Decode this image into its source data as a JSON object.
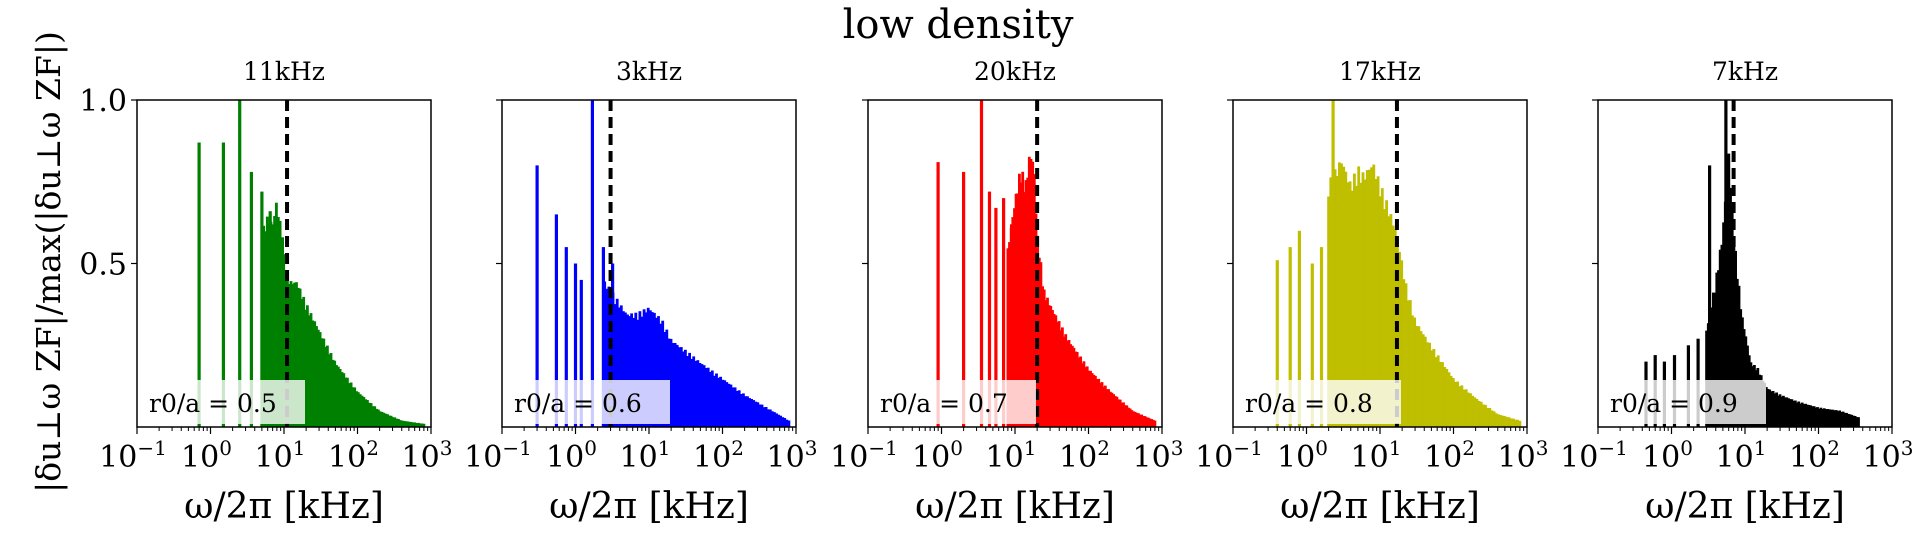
{
  "chart_data": {
    "type": "bar",
    "title": "low density",
    "ylabel": "|δu⊥ω ZF|/max(|δu⊥ω ZF|)",
    "ylim": [
      0,
      1.0
    ],
    "yticks": [
      0.5,
      1.0
    ],
    "ytick_labels": [
      "0.5",
      "1.0"
    ],
    "xscale": "log",
    "xlim": [
      0.1,
      1000
    ],
    "xtick_labels": [
      {
        "base": "10",
        "exp": "−1"
      },
      {
        "base": "10",
        "exp": "0"
      },
      {
        "base": "10",
        "exp": "1"
      },
      {
        "base": "10",
        "exp": "2"
      },
      {
        "base": "10",
        "exp": "3"
      }
    ],
    "xlabel": "ω/2π [kHz]",
    "panels": [
      {
        "title": "11kHz",
        "color": "#008000",
        "annotation": "r0/a = 0.5",
        "vline": 11,
        "spikes": [
          [
            0.7,
            0.87
          ],
          [
            1.5,
            0.87
          ],
          [
            2.5,
            1.0
          ],
          [
            3.6,
            0.78
          ],
          [
            5,
            0.72
          ],
          [
            6.5,
            0.66
          ],
          [
            8,
            0.62
          ],
          [
            9.5,
            0.58
          ]
        ],
        "envelope": [
          [
            5,
            0.6
          ],
          [
            6,
            0.65
          ],
          [
            7,
            0.63
          ],
          [
            8,
            0.7
          ],
          [
            9,
            0.62
          ],
          [
            10,
            0.52
          ],
          [
            12,
            0.45
          ],
          [
            15,
            0.45
          ],
          [
            20,
            0.38
          ],
          [
            30,
            0.3
          ],
          [
            50,
            0.2
          ],
          [
            100,
            0.11
          ],
          [
            200,
            0.05
          ],
          [
            400,
            0.02
          ],
          [
            800,
            0.01
          ]
        ]
      },
      {
        "title": "3kHz",
        "color": "#0000ff",
        "annotation": "r0/a = 0.6",
        "vline": 3,
        "spikes": [
          [
            0.3,
            0.8
          ],
          [
            0.55,
            0.65
          ],
          [
            0.75,
            0.55
          ],
          [
            1.0,
            0.5
          ],
          [
            1.2,
            0.45
          ],
          [
            1.7,
            1.0
          ],
          [
            2.4,
            0.55
          ],
          [
            3.2,
            0.5
          ]
        ],
        "envelope": [
          [
            2.5,
            0.45
          ],
          [
            3.5,
            0.4
          ],
          [
            5,
            0.35
          ],
          [
            7,
            0.35
          ],
          [
            10,
            0.37
          ],
          [
            15,
            0.33
          ],
          [
            20,
            0.27
          ],
          [
            30,
            0.24
          ],
          [
            50,
            0.2
          ],
          [
            100,
            0.15
          ],
          [
            200,
            0.1
          ],
          [
            400,
            0.06
          ],
          [
            800,
            0.02
          ]
        ]
      },
      {
        "title": "20kHz",
        "color": "#ff0000",
        "annotation": "r0/a = 0.7",
        "vline": 20,
        "spikes": [
          [
            0.9,
            0.81
          ],
          [
            2.0,
            0.78
          ],
          [
            3.5,
            1.0
          ],
          [
            4.5,
            0.72
          ],
          [
            5.5,
            0.67
          ],
          [
            7,
            0.7
          ],
          [
            9,
            0.62
          ],
          [
            11,
            0.6
          ]
        ],
        "envelope": [
          [
            8,
            0.55
          ],
          [
            10,
            0.7
          ],
          [
            12,
            0.8
          ],
          [
            14,
            0.75
          ],
          [
            16,
            0.85
          ],
          [
            18,
            0.82
          ],
          [
            20,
            0.6
          ],
          [
            25,
            0.42
          ],
          [
            30,
            0.38
          ],
          [
            50,
            0.28
          ],
          [
            100,
            0.18
          ],
          [
            200,
            0.11
          ],
          [
            400,
            0.05
          ],
          [
            800,
            0.02
          ]
        ]
      },
      {
        "title": "17kHz",
        "color": "#bfbf00",
        "annotation": "r0/a = 0.8",
        "vline": 17,
        "spikes": [
          [
            0.4,
            0.51
          ],
          [
            0.6,
            0.55
          ],
          [
            0.8,
            0.6
          ],
          [
            1.2,
            0.5
          ],
          [
            1.6,
            0.55
          ],
          [
            2.3,
            1.0
          ],
          [
            3.2,
            0.75
          ],
          [
            4.2,
            0.7
          ]
        ],
        "envelope": [
          [
            2,
            0.75
          ],
          [
            3,
            0.83
          ],
          [
            4,
            0.75
          ],
          [
            5,
            0.8
          ],
          [
            6,
            0.78
          ],
          [
            8,
            0.82
          ],
          [
            10,
            0.75
          ],
          [
            13,
            0.68
          ],
          [
            17,
            0.6
          ],
          [
            22,
            0.45
          ],
          [
            30,
            0.33
          ],
          [
            50,
            0.25
          ],
          [
            100,
            0.15
          ],
          [
            200,
            0.09
          ],
          [
            400,
            0.04
          ],
          [
            800,
            0.02
          ]
        ]
      },
      {
        "title": "7kHz",
        "color": "#000000",
        "annotation": "r0/a = 0.9",
        "vline": 7,
        "spikes": [
          [
            0.45,
            0.2
          ],
          [
            0.6,
            0.22
          ],
          [
            0.8,
            0.2
          ],
          [
            1.1,
            0.22
          ],
          [
            1.7,
            0.25
          ],
          [
            2.3,
            0.27
          ],
          [
            3.3,
            0.8
          ],
          [
            5.5,
            1.0
          ]
        ],
        "envelope": [
          [
            3,
            0.3
          ],
          [
            4,
            0.45
          ],
          [
            5,
            0.6
          ],
          [
            6,
            0.85
          ],
          [
            7,
            0.6
          ],
          [
            9,
            0.35
          ],
          [
            12,
            0.2
          ],
          [
            15,
            0.18
          ],
          [
            20,
            0.12
          ],
          [
            30,
            0.1
          ],
          [
            50,
            0.08
          ],
          [
            100,
            0.06
          ],
          [
            200,
            0.05
          ],
          [
            350,
            0.03
          ]
        ]
      }
    ]
  }
}
